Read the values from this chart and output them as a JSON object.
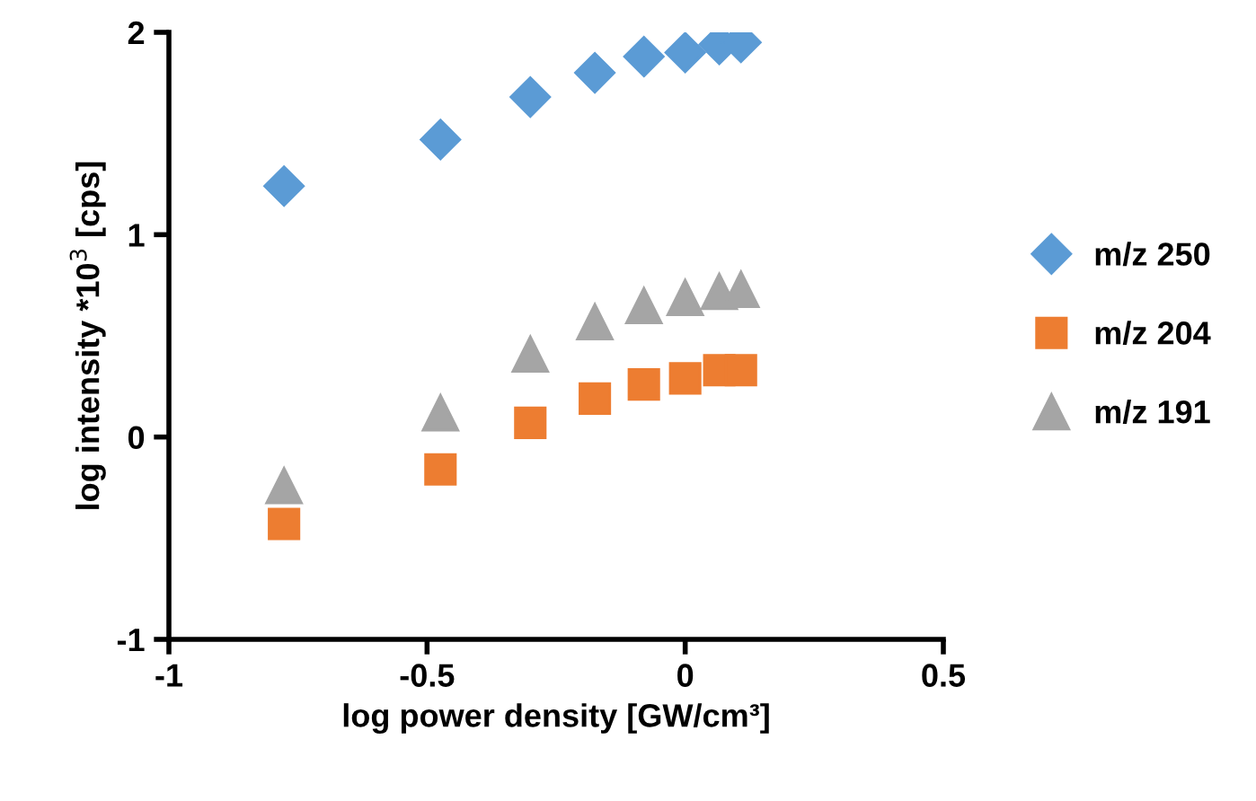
{
  "chart_data": {
    "type": "scatter",
    "xlabel": "log power density [GW/cm³]",
    "ylabel": "log intensity *10$^{3}$ [cps]",
    "x": [
      -0.777,
      -0.474,
      -0.3,
      -0.175,
      -0.08,
      0,
      0.066,
      0.108
    ],
    "series": [
      {
        "name": "m/z 250",
        "color": "#5b9bd5",
        "marker": "diamond",
        "values": [
          1.24,
          1.47,
          1.68,
          1.8,
          1.88,
          1.9,
          1.94,
          1.95
        ]
      },
      {
        "name": "m/z 204",
        "color": "#ed7d31",
        "marker": "square",
        "values": [
          -0.43,
          -0.16,
          0.07,
          0.19,
          0.26,
          0.29,
          0.33,
          0.33
        ]
      },
      {
        "name": "m/z 191",
        "color": "#a5a5a5",
        "marker": "triangle",
        "values": [
          -0.24,
          0.12,
          0.41,
          0.57,
          0.65,
          0.69,
          0.72,
          0.73
        ]
      }
    ],
    "xlim": [
      -1,
      0.5
    ],
    "xticks": [
      -1,
      -0.5,
      0,
      0.5
    ],
    "ylim": [
      -1,
      2
    ],
    "yticks": [
      -1,
      0,
      1,
      2
    ],
    "grid": false,
    "legend": "right"
  }
}
